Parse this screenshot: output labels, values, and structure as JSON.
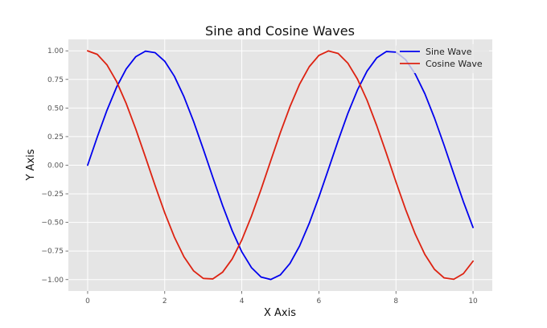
{
  "chart_data": {
    "type": "line",
    "title": "Sine and Cosine Waves",
    "xlabel": "X Axis",
    "ylabel": "Y Axis",
    "xlim": [
      -0.5,
      10.5
    ],
    "ylim": [
      -1.1,
      1.1
    ],
    "x_ticks": [
      0,
      2,
      4,
      6,
      8,
      10
    ],
    "x_tick_labels": [
      "0",
      "2",
      "4",
      "6",
      "8",
      "10"
    ],
    "y_ticks": [
      -1.0,
      -0.75,
      -0.5,
      -0.25,
      0.0,
      0.25,
      0.5,
      0.75,
      1.0
    ],
    "y_tick_labels": [
      "−1.00",
      "−0.75",
      "−0.50",
      "−0.25",
      "0.00",
      "0.25",
      "0.50",
      "0.75",
      "1.00"
    ],
    "grid": true,
    "legend_position": "top-right",
    "x": [
      0,
      0.25,
      0.5,
      0.75,
      1,
      1.25,
      1.5,
      1.75,
      2,
      2.25,
      2.5,
      2.75,
      3,
      3.25,
      3.5,
      3.75,
      4,
      4.25,
      4.5,
      4.75,
      5,
      5.25,
      5.5,
      5.75,
      6,
      6.25,
      6.5,
      6.75,
      7,
      7.25,
      7.5,
      7.75,
      8,
      8.25,
      8.5,
      8.75,
      9,
      9.25,
      9.5,
      9.75,
      10
    ],
    "series": [
      {
        "name": "Sine Wave",
        "color": "#0000ee",
        "values": [
          0.0,
          0.247,
          0.479,
          0.682,
          0.841,
          0.949,
          0.997,
          0.984,
          0.909,
          0.778,
          0.598,
          0.382,
          0.141,
          -0.108,
          -0.351,
          -0.572,
          -0.757,
          -0.895,
          -0.978,
          -0.999,
          -0.959,
          -0.859,
          -0.706,
          -0.508,
          -0.279,
          -0.033,
          0.215,
          0.451,
          0.657,
          0.823,
          0.938,
          0.994,
          0.989,
          0.923,
          0.798,
          0.625,
          0.412,
          0.174,
          -0.075,
          -0.319,
          -0.544
        ]
      },
      {
        "name": "Cosine Wave",
        "color": "#dd2211",
        "values": [
          1.0,
          0.969,
          0.878,
          0.732,
          0.54,
          0.315,
          0.071,
          -0.178,
          -0.416,
          -0.628,
          -0.801,
          -0.924,
          -0.99,
          -0.994,
          -0.936,
          -0.82,
          -0.654,
          -0.446,
          -0.211,
          0.038,
          0.284,
          0.512,
          0.709,
          0.861,
          0.96,
          0.999,
          0.977,
          0.893,
          0.754,
          0.568,
          0.347,
          0.105,
          -0.146,
          -0.386,
          -0.602,
          -0.78,
          -0.911,
          -0.985,
          -0.997,
          -0.948,
          -0.839
        ]
      }
    ]
  }
}
